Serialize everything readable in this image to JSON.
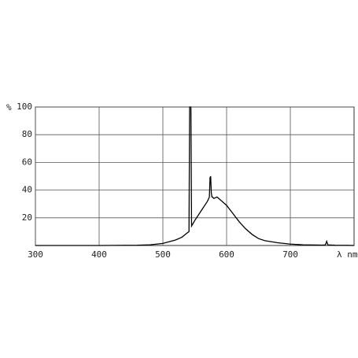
{
  "chart_data": {
    "type": "line",
    "y_label": "%",
    "x_label": "λ nm",
    "x": [
      300,
      400,
      460,
      480,
      500,
      520,
      530,
      538,
      541,
      542,
      544,
      545,
      550,
      560,
      570,
      573,
      574,
      575,
      576,
      577,
      578,
      580,
      585,
      590,
      600,
      610,
      620,
      630,
      640,
      650,
      660,
      680,
      700,
      720,
      750,
      755,
      757,
      759,
      770,
      790,
      800
    ],
    "series": [
      {
        "color": "#000000",
        "values": [
          0,
          0,
          0.2,
          0.5,
          1.5,
          4,
          6,
          9,
          10,
          100,
          100,
          14,
          18,
          25,
          32,
          35,
          49,
          50,
          38,
          35,
          35,
          34,
          35,
          33,
          29,
          23,
          17,
          12,
          8,
          5,
          3.5,
          2,
          1,
          0.5,
          0.3,
          0.4,
          3,
          0.4,
          0.2,
          0.1,
          0
        ]
      }
    ],
    "xlim": [
      300,
      800
    ],
    "ylim": [
      0,
      100
    ],
    "xticks": [
      300,
      400,
      500,
      600,
      700
    ],
    "yticks": [
      20,
      40,
      60,
      80,
      100
    ],
    "grid": true
  }
}
